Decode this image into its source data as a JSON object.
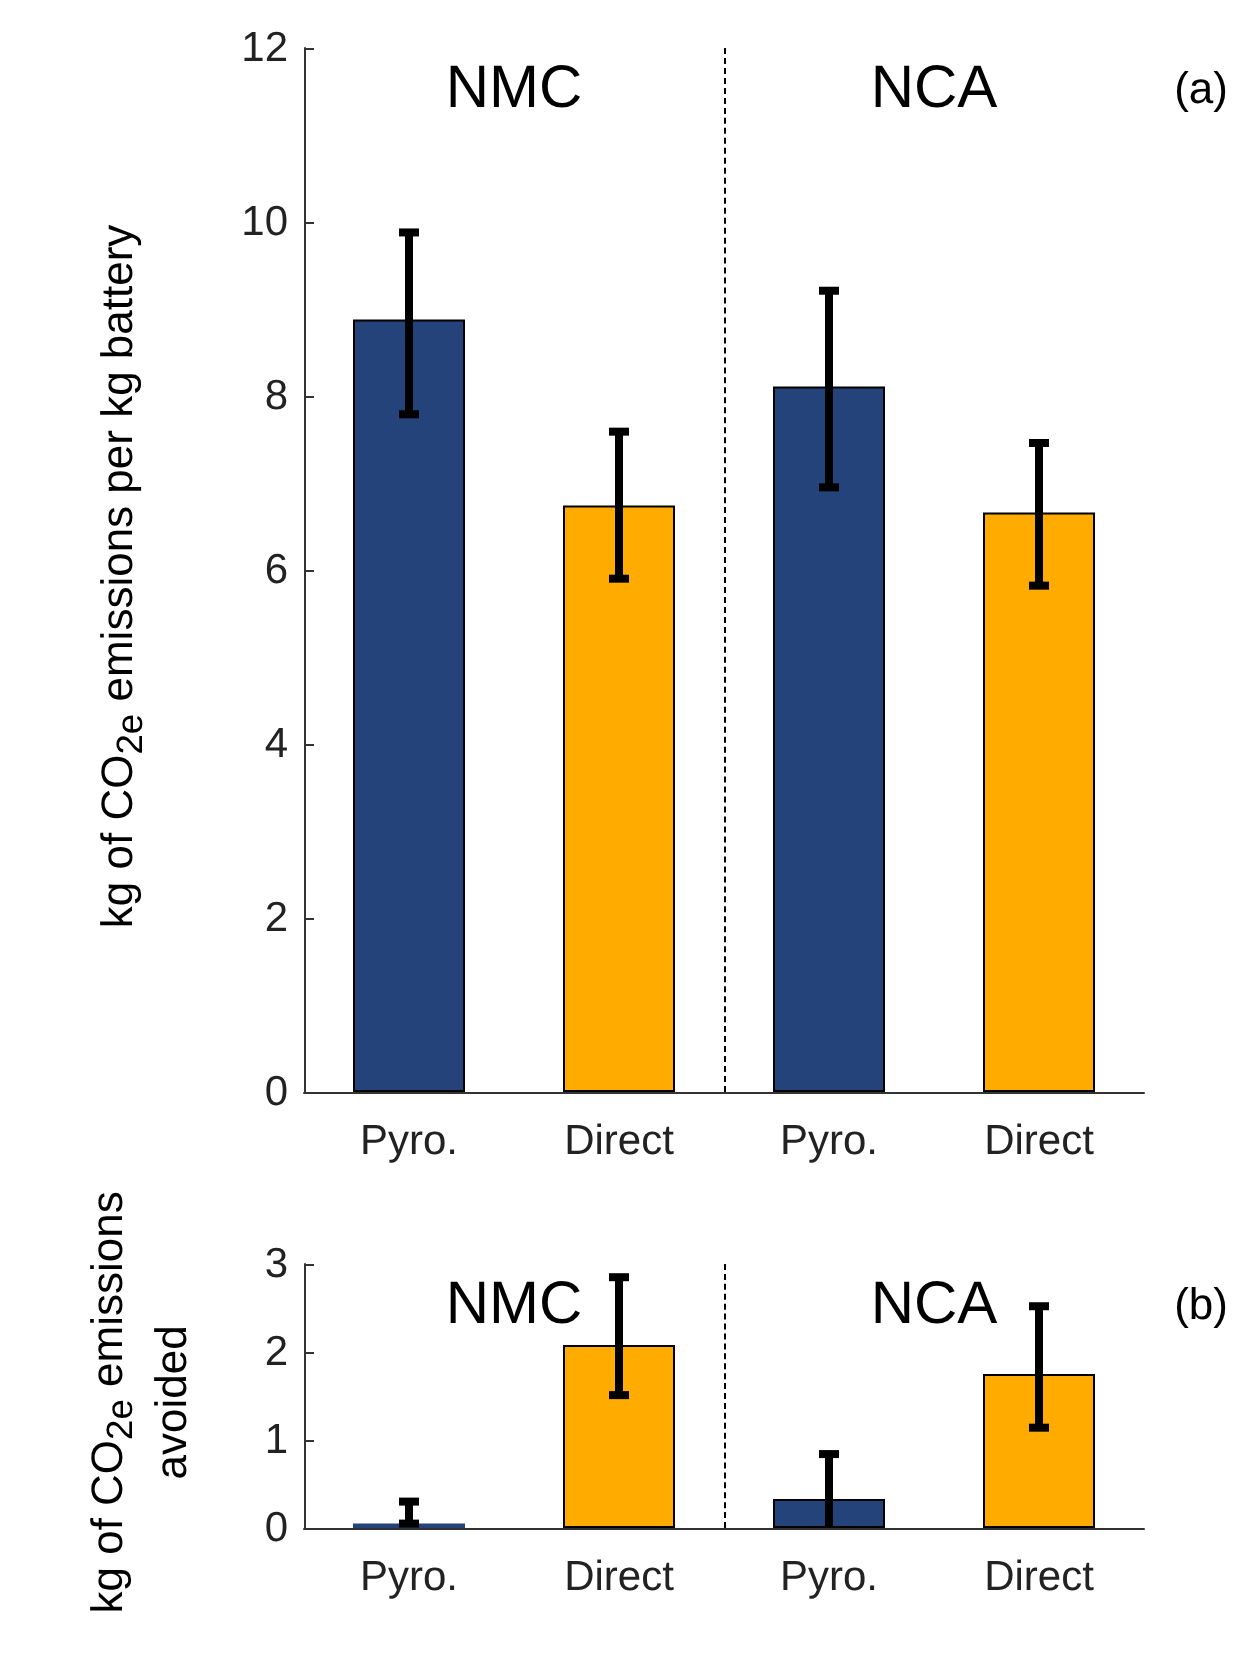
{
  "chart_data": [
    {
      "type": "bar",
      "categories": [
        "Pyro.",
        "Direct",
        "Pyro.",
        "Direct"
      ],
      "ylabel": "kg of CO$_{2e}$ emissions per kg battery",
      "values": [
        8.88,
        6.74,
        8.11,
        6.66
      ],
      "colors": [
        "#23437a",
        "#ffab00",
        "#23437a",
        "#ffab00"
      ],
      "errors": [
        [
          7.79,
          9.88
        ],
        [
          5.9,
          7.59
        ],
        [
          6.95,
          9.21
        ],
        [
          5.82,
          7.46
        ]
      ],
      "ylim": [
        0,
        12
      ],
      "yticks": [
        0,
        2,
        4,
        6,
        8,
        10,
        12
      ],
      "grid": false,
      "annotations": [
        "NMC",
        "NCA",
        "(a)"
      ]
    },
    {
      "type": "bar",
      "categories": [
        "Pyro.",
        "Direct",
        "Pyro.",
        "Direct"
      ],
      "ylabel": "kg of CO$_{2e}$ emissions avoided",
      "values": [
        0.05,
        2.08,
        0.33,
        1.75
      ],
      "colors": [
        "#23437a",
        "#ffab00",
        "#23437a",
        "#ffab00"
      ],
      "errors": [
        [
          0.05,
          0.3
        ],
        [
          1.51,
          2.85
        ],
        [
          0,
          0.84
        ],
        [
          1.14,
          2.52
        ]
      ],
      "ylim": [
        0,
        3
      ],
      "yticks": [
        0,
        1,
        2,
        3
      ],
      "grid": false,
      "annotations": [
        "NMC",
        "NCA",
        "(b)"
      ]
    }
  ]
}
